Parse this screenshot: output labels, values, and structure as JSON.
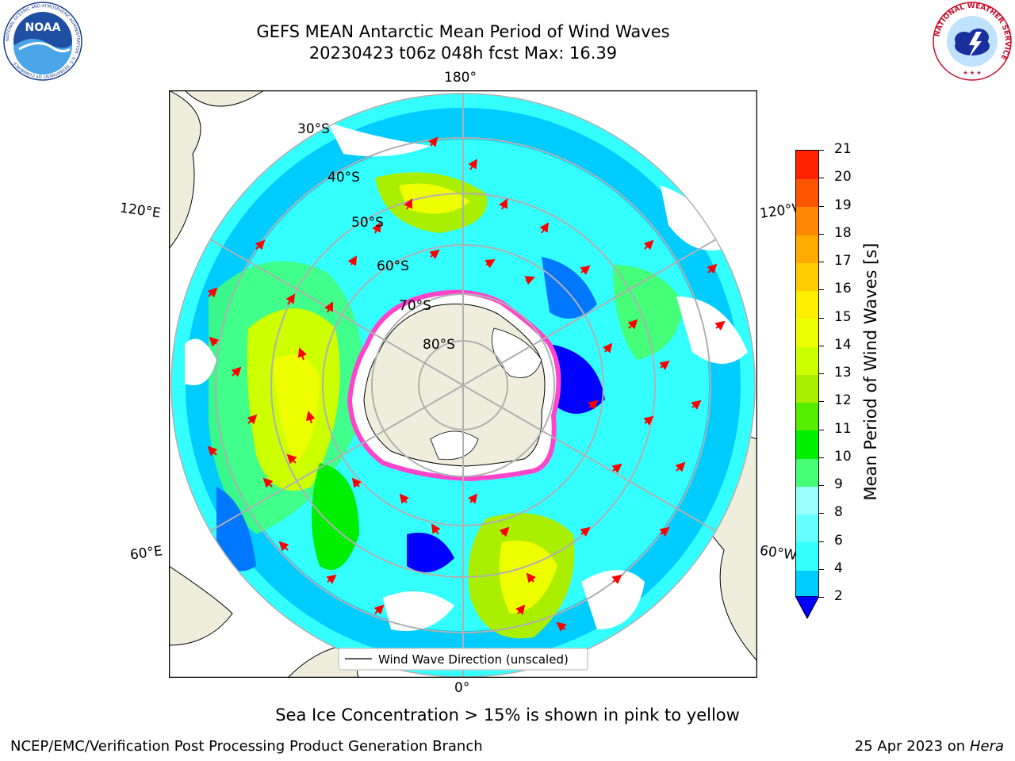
{
  "header": {
    "title_line1": "GEFS MEAN Antarctic Mean Period of Wind Waves",
    "title_line2": "20230423 t06z 048h fcst   Max: 16.39"
  },
  "logos": {
    "noaa_text": "NOAA",
    "noaa_ring_text": "NATIONAL OCEANIC AND ATMOSPHERIC ADMINISTRATION · U.S. DEPARTMENT OF COMMERCE",
    "nws_ring_text": "NATIONAL WEATHER SERVICE"
  },
  "map": {
    "projection": "south-polar stereographic",
    "longitude_labels": [
      "180°",
      "120°E",
      "120°W",
      "60°E",
      "60°W",
      "0°"
    ],
    "latitude_labels": [
      "30°S",
      "40°S",
      "50°S",
      "60°S",
      "70°S",
      "80°S"
    ],
    "legend_label": "Wind Wave Direction (unscaled)",
    "colors": {
      "land": "#efeddc",
      "ice_edge": "#ff44cc",
      "arrow": "#ff0000"
    }
  },
  "colorbar": {
    "label": "Mean Period of Wind Waves [s]",
    "ticks": [
      "2",
      "4",
      "6",
      "8",
      "9",
      "10",
      "11",
      "12",
      "13",
      "14",
      "15",
      "16",
      "17",
      "18",
      "19",
      "20",
      "21"
    ],
    "colors": [
      "#0077ff",
      "#00ccff",
      "#33ffff",
      "#66ffff",
      "#99ffff",
      "#44ff77",
      "#00ee00",
      "#55ee00",
      "#aaee00",
      "#ccff00",
      "#eeff00",
      "#ffee00",
      "#ffcc00",
      "#ffaa00",
      "#ff8800",
      "#ff5500",
      "#ff2200",
      "#ff0000"
    ],
    "extend_color": "#0000ff"
  },
  "footer": {
    "sea_ice_note": "Sea Ice Concentration > 15% is shown in pink to yellow",
    "credit": "NCEP/EMC/Verification Post Processing Product Generation Branch",
    "date_text": "25 Apr 2023 on ",
    "machine": "Hera"
  }
}
